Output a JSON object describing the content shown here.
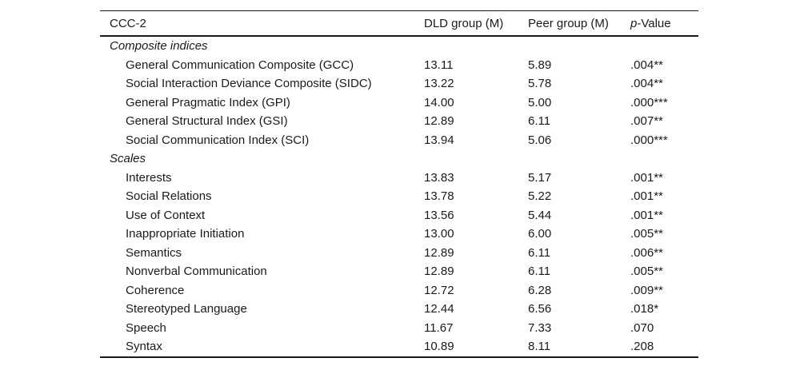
{
  "page": {
    "background_color": "#ffffff",
    "text_color": "#1a1a1a",
    "rule_color": "#1a1a1a"
  },
  "table": {
    "columns": [
      "CCC-2",
      "DLD group (M)",
      "Peer group (M)",
      "p-Value"
    ],
    "p_column_parts": {
      "italic": "p",
      "rest": "-Value"
    },
    "sections": [
      {
        "label": "Composite indices",
        "rows": [
          {
            "label": "General Communication Composite (GCC)",
            "dld": "13.11",
            "peer": "5.89",
            "p": ".004**"
          },
          {
            "label": "Social Interaction Deviance Composite (SIDC)",
            "dld": "13.22",
            "peer": "5.78",
            "p": ".004**"
          },
          {
            "label": "General Pragmatic Index (GPI)",
            "dld": "14.00",
            "peer": "5.00",
            "p": ".000***"
          },
          {
            "label": "General Structural Index (GSI)",
            "dld": "12.89",
            "peer": "6.11",
            "p": ".007**"
          },
          {
            "label": "Social Communication Index (SCI)",
            "dld": "13.94",
            "peer": "5.06",
            "p": ".000***"
          }
        ]
      },
      {
        "label": "Scales",
        "rows": [
          {
            "label": "Interests",
            "dld": "13.83",
            "peer": "5.17",
            "p": ".001**"
          },
          {
            "label": "Social Relations",
            "dld": "13.78",
            "peer": "5.22",
            "p": ".001**"
          },
          {
            "label": "Use of Context",
            "dld": "13.56",
            "peer": "5.44",
            "p": ".001**"
          },
          {
            "label": "Inappropriate Initiation",
            "dld": "13.00",
            "peer": "6.00",
            "p": ".005**"
          },
          {
            "label": "Semantics",
            "dld": "12.89",
            "peer": "6.11",
            "p": ".006**"
          },
          {
            "label": "Nonverbal Communication",
            "dld": "12.89",
            "peer": "6.11",
            "p": ".005**"
          },
          {
            "label": "Coherence",
            "dld": "12.72",
            "peer": "6.28",
            "p": ".009**"
          },
          {
            "label": "Stereotyped Language",
            "dld": "12.44",
            "peer": "6.56",
            "p": ".018*"
          },
          {
            "label": "Speech",
            "dld": "11.67",
            "peer": "7.33",
            "p": ".070"
          },
          {
            "label": "Syntax",
            "dld": "10.89",
            "peer": "8.11",
            "p": ".208"
          }
        ]
      }
    ]
  }
}
